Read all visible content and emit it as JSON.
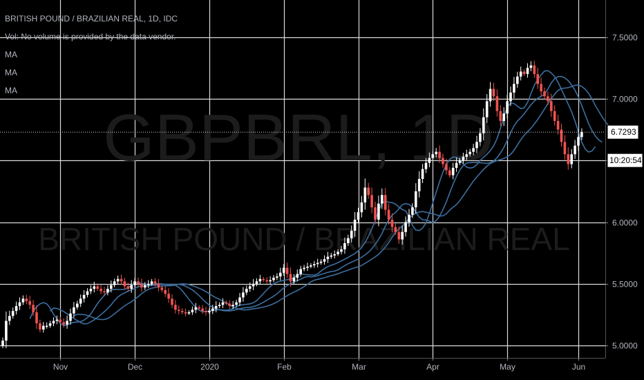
{
  "chart_data": {
    "type": "candlestick",
    "title": "BRITISH POUND / BRAZILIAN REAL, 1D, IDC",
    "watermark_symbol": "GBPBRL, 1D",
    "watermark_name": "BRITISH POUND / BRAZILIAN REAL",
    "volume_note": "Vol: No volume is provided by the data vendor.",
    "ma_labels": [
      "MA",
      "MA",
      "MA"
    ],
    "y_ticks": [
      "7.5000",
      "7.0000",
      "6.5000",
      "6.0000",
      "5.5000",
      "5.0000"
    ],
    "y_tick_values": [
      7.5,
      7.0,
      6.5,
      6.0,
      5.5,
      5.0
    ],
    "ylim": [
      4.9,
      7.8
    ],
    "x_ticks": [
      {
        "label": "Nov",
        "index": 17
      },
      {
        "label": "Dec",
        "index": 39
      },
      {
        "label": "2020",
        "index": 61
      },
      {
        "label": "Feb",
        "index": 83
      },
      {
        "label": "Mar",
        "index": 105
      },
      {
        "label": "Apr",
        "index": 127
      },
      {
        "label": "May",
        "index": 149
      },
      {
        "label": "Jun",
        "index": 170
      }
    ],
    "last_price": {
      "value": 6.7293,
      "label": "6.7293"
    },
    "countdown": {
      "value": 6.5,
      "label": "10:20:54"
    },
    "closes": [
      5.04,
      5.2,
      5.24,
      5.28,
      5.32,
      5.35,
      5.38,
      5.36,
      5.33,
      5.27,
      5.18,
      5.13,
      5.16,
      5.16,
      5.18,
      5.2,
      5.21,
      5.19,
      5.17,
      5.2,
      5.26,
      5.31,
      5.34,
      5.38,
      5.41,
      5.44,
      5.46,
      5.48,
      5.46,
      5.44,
      5.43,
      5.46,
      5.49,
      5.52,
      5.54,
      5.52,
      5.48,
      5.46,
      5.49,
      5.52,
      5.5,
      5.47,
      5.49,
      5.5,
      5.52,
      5.5,
      5.47,
      5.45,
      5.42,
      5.38,
      5.33,
      5.29,
      5.28,
      5.27,
      5.26,
      5.27,
      5.29,
      5.31,
      5.3,
      5.28,
      5.27,
      5.28,
      5.3,
      5.32,
      5.33,
      5.35,
      5.34,
      5.32,
      5.33,
      5.35,
      5.39,
      5.43,
      5.46,
      5.48,
      5.5,
      5.52,
      5.54,
      5.53,
      5.52,
      5.53,
      5.55,
      5.56,
      5.59,
      5.63,
      5.58,
      5.52,
      5.55,
      5.58,
      5.62,
      5.63,
      5.64,
      5.65,
      5.66,
      5.67,
      5.68,
      5.7,
      5.72,
      5.73,
      5.74,
      5.76,
      5.78,
      5.83,
      5.87,
      5.93,
      6.02,
      6.08,
      6.16,
      6.28,
      6.22,
      6.12,
      6.02,
      6.15,
      6.22,
      6.1,
      6.02,
      5.96,
      5.92,
      5.86,
      5.92,
      6.0,
      6.06,
      6.12,
      6.25,
      6.35,
      6.43,
      6.48,
      6.52,
      6.55,
      6.57,
      6.52,
      6.47,
      6.42,
      6.38,
      6.44,
      6.48,
      6.5,
      6.53,
      6.55,
      6.57,
      6.6,
      6.65,
      6.72,
      6.85,
      6.98,
      7.08,
      7.02,
      6.9,
      6.82,
      6.88,
      6.98,
      7.05,
      7.12,
      7.18,
      7.22,
      7.2,
      7.25,
      7.27,
      7.2,
      7.12,
      7.06,
      7.02,
      6.98,
      6.9,
      6.82,
      6.75,
      6.65,
      6.55,
      6.47,
      6.55,
      6.62,
      6.69,
      6.73
    ]
  }
}
